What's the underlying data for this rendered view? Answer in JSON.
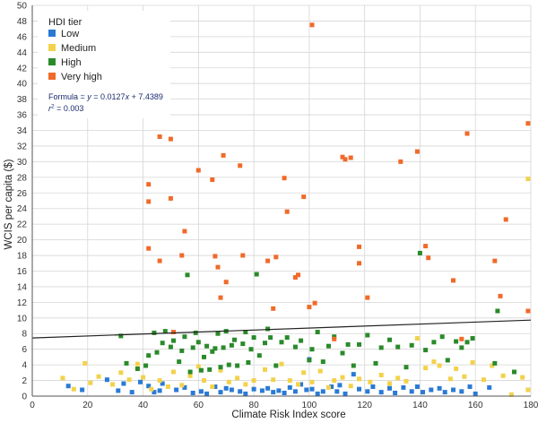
{
  "chart_data": {
    "type": "scatter",
    "xlabel": "Climate Risk Index score",
    "ylabel": "WCIS per capita ($)",
    "xlim": [
      0,
      180
    ],
    "ylim": [
      0,
      50
    ],
    "x_ticks": [
      0,
      20,
      40,
      60,
      80,
      100,
      120,
      140,
      160,
      180
    ],
    "y_ticks": [
      0,
      2,
      4,
      6,
      8,
      10,
      12,
      14,
      16,
      18,
      20,
      22,
      24,
      26,
      28,
      30,
      32,
      34,
      36,
      38,
      40,
      42,
      44,
      46,
      48,
      50
    ],
    "grid": "vertical and horizontal",
    "legend": {
      "title": "HDI tier",
      "position": "top-left"
    },
    "series": [
      {
        "name": "Low",
        "color": "#2a7ad5",
        "points": [
          [
            13,
            1.3
          ],
          [
            18,
            0.8
          ],
          [
            27,
            2.1
          ],
          [
            31,
            0.7
          ],
          [
            33,
            1.6
          ],
          [
            36,
            0.5
          ],
          [
            39,
            1.8
          ],
          [
            42,
            1.3
          ],
          [
            44,
            0.5
          ],
          [
            46,
            0.7
          ],
          [
            47,
            1.6
          ],
          [
            52,
            0.8
          ],
          [
            55,
            1.1
          ],
          [
            58,
            0.4
          ],
          [
            61,
            0.6
          ],
          [
            63,
            0.3
          ],
          [
            66,
            1.2
          ],
          [
            68,
            0.5
          ],
          [
            70,
            1.0
          ],
          [
            72,
            0.8
          ],
          [
            75,
            0.6
          ],
          [
            77,
            0.3
          ],
          [
            80,
            0.9
          ],
          [
            83,
            0.7
          ],
          [
            85,
            1.0
          ],
          [
            87,
            0.5
          ],
          [
            89,
            0.7
          ],
          [
            91,
            0.4
          ],
          [
            93,
            1.1
          ],
          [
            95,
            0.6
          ],
          [
            97,
            1.5
          ],
          [
            99,
            0.8
          ],
          [
            100,
            4.7
          ],
          [
            101,
            0.9
          ],
          [
            103,
            0.3
          ],
          [
            105,
            0.6
          ],
          [
            108,
            1.2
          ],
          [
            110,
            0.6
          ],
          [
            111,
            1.4
          ],
          [
            113,
            0.3
          ],
          [
            116,
            2.8
          ],
          [
            118,
            0.9
          ],
          [
            121,
            0.6
          ],
          [
            123,
            1.2
          ],
          [
            126,
            0.5
          ],
          [
            129,
            1.0
          ],
          [
            131,
            0.4
          ],
          [
            134,
            1.1
          ],
          [
            137,
            0.6
          ],
          [
            139,
            1.2
          ],
          [
            141,
            0.5
          ],
          [
            144,
            0.8
          ],
          [
            147,
            1.0
          ],
          [
            149,
            0.5
          ],
          [
            152,
            0.8
          ],
          [
            155,
            0.6
          ],
          [
            158,
            1.2
          ],
          [
            160,
            0.3
          ],
          [
            165,
            1.1
          ]
        ]
      },
      {
        "name": "Medium",
        "color": "#f2d24b",
        "points": [
          [
            11,
            2.3
          ],
          [
            15,
            0.9
          ],
          [
            19,
            4.2
          ],
          [
            21,
            1.7
          ],
          [
            24,
            2.5
          ],
          [
            29,
            1.5
          ],
          [
            32,
            3.0
          ],
          [
            35,
            2.1
          ],
          [
            38,
            4.1
          ],
          [
            40,
            2.4
          ],
          [
            43,
            0.9
          ],
          [
            46,
            2.0
          ],
          [
            49,
            1.2
          ],
          [
            51,
            3.1
          ],
          [
            54,
            1.4
          ],
          [
            57,
            2.6
          ],
          [
            60,
            3.8
          ],
          [
            62,
            2.0
          ],
          [
            65,
            1.2
          ],
          [
            68,
            3.3
          ],
          [
            71,
            1.8
          ],
          [
            74,
            2.3
          ],
          [
            77,
            1.5
          ],
          [
            80,
            2.0
          ],
          [
            84,
            3.4
          ],
          [
            87,
            2.1
          ],
          [
            90,
            4.1
          ],
          [
            93,
            2.0
          ],
          [
            96,
            1.5
          ],
          [
            98,
            3.0
          ],
          [
            101,
            1.8
          ],
          [
            104,
            3.2
          ],
          [
            107,
            1.1
          ],
          [
            109,
            2.0
          ],
          [
            112,
            2.4
          ],
          [
            115,
            1.3
          ],
          [
            118,
            2.2
          ],
          [
            122,
            1.8
          ],
          [
            126,
            2.7
          ],
          [
            129,
            1.6
          ],
          [
            132,
            2.3
          ],
          [
            135,
            1.9
          ],
          [
            139,
            7.4
          ],
          [
            142,
            3.6
          ],
          [
            145,
            4.4
          ],
          [
            147,
            3.9
          ],
          [
            151,
            2.2
          ],
          [
            153,
            3.5
          ],
          [
            156,
            2.5
          ],
          [
            159,
            4.3
          ],
          [
            163,
            2.1
          ],
          [
            166,
            3.9
          ],
          [
            170,
            2.6
          ],
          [
            173,
            0.2
          ],
          [
            177,
            2.4
          ],
          [
            179,
            27.8
          ],
          [
            179,
            0.8
          ]
        ]
      },
      {
        "name": "High",
        "color": "#2a8a2a",
        "points": [
          [
            32,
            7.7
          ],
          [
            34,
            4.2
          ],
          [
            38,
            3.5
          ],
          [
            41,
            3.9
          ],
          [
            42,
            5.2
          ],
          [
            44,
            8.1
          ],
          [
            45,
            5.6
          ],
          [
            47,
            6.8
          ],
          [
            48,
            8.3
          ],
          [
            50,
            6.3
          ],
          [
            51,
            7.1
          ],
          [
            53,
            4.4
          ],
          [
            54,
            5.8
          ],
          [
            55,
            7.6
          ],
          [
            56,
            15.5
          ],
          [
            57,
            3.1
          ],
          [
            58,
            6.2
          ],
          [
            59,
            8.1
          ],
          [
            60,
            6.9
          ],
          [
            61,
            3.3
          ],
          [
            62,
            5.0
          ],
          [
            63,
            6.4
          ],
          [
            64,
            3.4
          ],
          [
            65,
            5.7
          ],
          [
            66,
            6.1
          ],
          [
            67,
            8.0
          ],
          [
            68,
            3.7
          ],
          [
            69,
            6.2
          ],
          [
            70,
            8.3
          ],
          [
            71,
            4.0
          ],
          [
            72,
            6.5
          ],
          [
            73,
            7.2
          ],
          [
            74,
            3.9
          ],
          [
            76,
            6.7
          ],
          [
            77,
            8.2
          ],
          [
            78,
            4.3
          ],
          [
            79,
            6.0
          ],
          [
            80,
            7.5
          ],
          [
            81,
            15.6
          ],
          [
            82,
            5.2
          ],
          [
            84,
            6.8
          ],
          [
            85,
            8.6
          ],
          [
            86,
            7.5
          ],
          [
            88,
            3.9
          ],
          [
            90,
            6.9
          ],
          [
            92,
            7.5
          ],
          [
            95,
            6.3
          ],
          [
            97,
            7.1
          ],
          [
            100,
            4.6
          ],
          [
            101,
            6.0
          ],
          [
            103,
            8.2
          ],
          [
            105,
            4.4
          ],
          [
            107,
            6.4
          ],
          [
            109,
            7.6
          ],
          [
            112,
            5.5
          ],
          [
            114,
            6.6
          ],
          [
            116,
            3.9
          ],
          [
            118,
            6.6
          ],
          [
            121,
            7.8
          ],
          [
            124,
            4.2
          ],
          [
            126,
            6.2
          ],
          [
            129,
            7.2
          ],
          [
            132,
            6.3
          ],
          [
            135,
            3.7
          ],
          [
            137,
            6.5
          ],
          [
            140,
            18.3
          ],
          [
            142,
            5.9
          ],
          [
            145,
            6.9
          ],
          [
            148,
            7.6
          ],
          [
            150,
            4.6
          ],
          [
            153,
            7.0
          ],
          [
            155,
            6.2
          ],
          [
            157,
            6.9
          ],
          [
            159,
            7.4
          ],
          [
            167,
            4.2
          ],
          [
            168,
            10.9
          ],
          [
            174,
            3.1
          ]
        ]
      },
      {
        "name": "Very high",
        "color": "#f06a2a",
        "points": [
          [
            42,
            27.1
          ],
          [
            42,
            24.9
          ],
          [
            42,
            18.9
          ],
          [
            46,
            33.2
          ],
          [
            46,
            17.3
          ],
          [
            50,
            32.9
          ],
          [
            50,
            25.3
          ],
          [
            51,
            8.2
          ],
          [
            54,
            18.0
          ],
          [
            55,
            21.1
          ],
          [
            60,
            28.9
          ],
          [
            65,
            27.7
          ],
          [
            66,
            17.9
          ],
          [
            67,
            16.5
          ],
          [
            68,
            12.6
          ],
          [
            69,
            30.8
          ],
          [
            70,
            14.6
          ],
          [
            75,
            29.5
          ],
          [
            76,
            18.0
          ],
          [
            85,
            17.3
          ],
          [
            87,
            11.2
          ],
          [
            88,
            17.8
          ],
          [
            91,
            27.9
          ],
          [
            92,
            23.6
          ],
          [
            95,
            15.2
          ],
          [
            96,
            15.5
          ],
          [
            98,
            25.5
          ],
          [
            100,
            11.4
          ],
          [
            101,
            47.5
          ],
          [
            102,
            11.9
          ],
          [
            109,
            7.3
          ],
          [
            112,
            30.6
          ],
          [
            113,
            30.3
          ],
          [
            115,
            30.5
          ],
          [
            118,
            19.1
          ],
          [
            118,
            17.0
          ],
          [
            121,
            12.6
          ],
          [
            133,
            30.0
          ],
          [
            139,
            31.3
          ],
          [
            142,
            19.2
          ],
          [
            143,
            17.7
          ],
          [
            152,
            14.8
          ],
          [
            155,
            7.3
          ],
          [
            157,
            33.6
          ],
          [
            167,
            17.3
          ],
          [
            169,
            12.8
          ],
          [
            171,
            22.6
          ],
          [
            179,
            34.9
          ],
          [
            179,
            10.9
          ]
        ]
      }
    ],
    "trendline": {
      "slope": 0.0127,
      "intercept": 7.4389,
      "color": "#222222"
    },
    "annotations": {
      "formula_prefix": "Formula = ",
      "formula_y": "y",
      "formula_mid": " = 0.0127",
      "formula_x": "x",
      "formula_suffix": " + 7.4389",
      "r2_r": "r",
      "r2_exp": "2",
      "r2_value": " = 0.003"
    }
  }
}
